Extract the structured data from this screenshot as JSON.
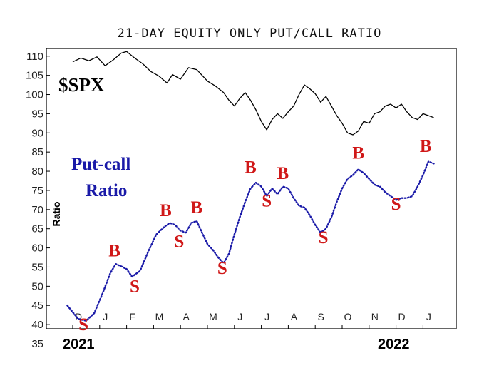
{
  "chart_data": {
    "type": "line",
    "title": "21-DAY EQUITY ONLY PUT/CALL RATIO",
    "ylabel": "Ratio",
    "ylim": [
      35,
      112
    ],
    "yticks": [
      35,
      40,
      45,
      50,
      55,
      60,
      65,
      70,
      75,
      80,
      85,
      90,
      95,
      100,
      105,
      110
    ],
    "month_labels": [
      "D",
      "J",
      "F",
      "M",
      "A",
      "M",
      "J",
      "J",
      "A",
      "S",
      "O",
      "N",
      "D",
      "J"
    ],
    "year_labels": [
      "2021",
      "2022"
    ],
    "series": [
      {
        "name": "$SPX",
        "color": "#000000",
        "style": "solid",
        "points": [
          [
            0,
            108.5
          ],
          [
            0.3,
            109.5
          ],
          [
            0.6,
            108.8
          ],
          [
            0.9,
            109.8
          ],
          [
            1.2,
            107.5
          ],
          [
            1.5,
            109.0
          ],
          [
            1.8,
            110.8
          ],
          [
            2.0,
            111.2
          ],
          [
            2.3,
            109.5
          ],
          [
            2.6,
            108.0
          ],
          [
            2.9,
            106.0
          ],
          [
            3.2,
            104.8
          ],
          [
            3.5,
            103.0
          ],
          [
            3.7,
            105.2
          ],
          [
            4.0,
            104.0
          ],
          [
            4.3,
            107.0
          ],
          [
            4.6,
            106.5
          ],
          [
            4.8,
            105.0
          ],
          [
            5.0,
            103.5
          ],
          [
            5.3,
            102.2
          ],
          [
            5.6,
            100.5
          ],
          [
            5.8,
            98.5
          ],
          [
            6.0,
            97.0
          ],
          [
            6.2,
            99.0
          ],
          [
            6.4,
            100.5
          ],
          [
            6.6,
            98.5
          ],
          [
            6.8,
            96.0
          ],
          [
            7.0,
            93.0
          ],
          [
            7.2,
            90.8
          ],
          [
            7.4,
            93.5
          ],
          [
            7.6,
            95.0
          ],
          [
            7.8,
            93.8
          ],
          [
            8.0,
            95.5
          ],
          [
            8.2,
            97.0
          ],
          [
            8.4,
            100.0
          ],
          [
            8.6,
            102.5
          ],
          [
            8.8,
            101.5
          ],
          [
            9.0,
            100.2
          ],
          [
            9.2,
            98.0
          ],
          [
            9.4,
            99.5
          ],
          [
            9.6,
            97.0
          ],
          [
            9.8,
            94.5
          ],
          [
            10.0,
            92.5
          ],
          [
            10.2,
            90.0
          ],
          [
            10.4,
            89.5
          ],
          [
            10.6,
            90.5
          ],
          [
            10.8,
            93.0
          ],
          [
            11.0,
            92.5
          ],
          [
            11.2,
            95.0
          ],
          [
            11.4,
            95.5
          ],
          [
            11.6,
            97.0
          ],
          [
            11.8,
            97.5
          ],
          [
            12.0,
            96.5
          ],
          [
            12.2,
            97.5
          ],
          [
            12.4,
            95.5
          ],
          [
            12.6,
            94.0
          ],
          [
            12.8,
            93.5
          ],
          [
            13.0,
            95.0
          ],
          [
            13.2,
            94.5
          ],
          [
            13.4,
            94.0
          ]
        ]
      },
      {
        "name": "Put-call Ratio",
        "color": "#1a1aa8",
        "style": "dotted",
        "points": [
          [
            -0.2,
            45.0
          ],
          [
            0.2,
            41.5
          ],
          [
            0.5,
            41.0
          ],
          [
            0.8,
            43.0
          ],
          [
            1.1,
            48.0
          ],
          [
            1.4,
            53.5
          ],
          [
            1.6,
            55.8
          ],
          [
            1.8,
            55.2
          ],
          [
            2.0,
            54.5
          ],
          [
            2.2,
            52.5
          ],
          [
            2.5,
            54.0
          ],
          [
            2.8,
            59.0
          ],
          [
            3.1,
            63.5
          ],
          [
            3.4,
            65.5
          ],
          [
            3.6,
            66.5
          ],
          [
            3.8,
            66.0
          ],
          [
            4.0,
            64.5
          ],
          [
            4.2,
            64.0
          ],
          [
            4.4,
            66.5
          ],
          [
            4.6,
            67.0
          ],
          [
            4.8,
            64.0
          ],
          [
            5.0,
            61.0
          ],
          [
            5.2,
            59.5
          ],
          [
            5.4,
            57.5
          ],
          [
            5.6,
            56.0
          ],
          [
            5.8,
            58.5
          ],
          [
            6.0,
            63.5
          ],
          [
            6.2,
            68.0
          ],
          [
            6.4,
            72.0
          ],
          [
            6.6,
            75.5
          ],
          [
            6.8,
            77.0
          ],
          [
            7.0,
            76.0
          ],
          [
            7.2,
            73.5
          ],
          [
            7.4,
            75.5
          ],
          [
            7.6,
            74.0
          ],
          [
            7.8,
            76.0
          ],
          [
            8.0,
            75.5
          ],
          [
            8.2,
            73.0
          ],
          [
            8.4,
            71.0
          ],
          [
            8.6,
            70.5
          ],
          [
            8.8,
            68.5
          ],
          [
            9.0,
            66.0
          ],
          [
            9.2,
            64.0
          ],
          [
            9.4,
            65.0
          ],
          [
            9.6,
            68.0
          ],
          [
            9.8,
            72.0
          ],
          [
            10.0,
            75.5
          ],
          [
            10.2,
            78.0
          ],
          [
            10.4,
            79.0
          ],
          [
            10.6,
            80.5
          ],
          [
            10.8,
            79.5
          ],
          [
            11.0,
            78.0
          ],
          [
            11.2,
            76.5
          ],
          [
            11.4,
            76.0
          ],
          [
            11.6,
            74.5
          ],
          [
            11.8,
            73.5
          ],
          [
            12.0,
            72.5
          ],
          [
            12.2,
            73.0
          ],
          [
            12.4,
            73.0
          ],
          [
            12.6,
            73.5
          ],
          [
            12.8,
            76.0
          ],
          [
            13.0,
            79.0
          ],
          [
            13.2,
            82.5
          ],
          [
            13.4,
            82.0
          ]
        ]
      }
    ],
    "series_labels": {
      "spx": "$SPX",
      "pcr_line1": "Put-call",
      "pcr_line2": "Ratio"
    },
    "signals": [
      {
        "label": "S",
        "x": 0.4,
        "y": 38.5
      },
      {
        "label": "B",
        "x": 1.55,
        "y": 57.8
      },
      {
        "label": "S",
        "x": 2.3,
        "y": 48.5
      },
      {
        "label": "B",
        "x": 3.45,
        "y": 68.3
      },
      {
        "label": "S",
        "x": 3.95,
        "y": 60.2
      },
      {
        "label": "B",
        "x": 4.6,
        "y": 69.0
      },
      {
        "label": "S",
        "x": 5.55,
        "y": 53.2
      },
      {
        "label": "B",
        "x": 6.6,
        "y": 79.5
      },
      {
        "label": "S",
        "x": 7.2,
        "y": 70.8
      },
      {
        "label": "B",
        "x": 7.8,
        "y": 78.0
      },
      {
        "label": "S",
        "x": 9.3,
        "y": 61.2
      },
      {
        "label": "B",
        "x": 10.6,
        "y": 83.3
      },
      {
        "label": "S",
        "x": 12.0,
        "y": 70.0
      },
      {
        "label": "B",
        "x": 13.1,
        "y": 85.0
      }
    ],
    "grid": false
  }
}
